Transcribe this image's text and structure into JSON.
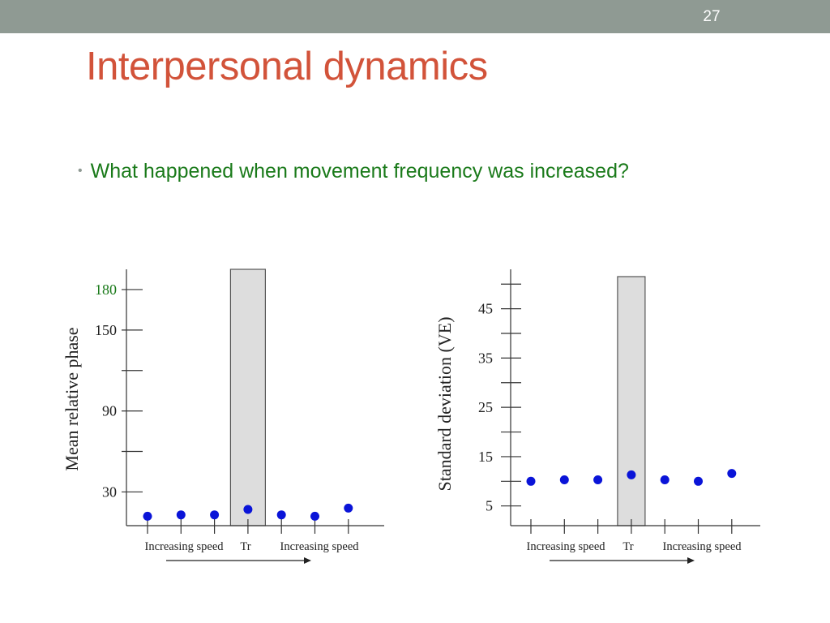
{
  "slide": {
    "number": "27",
    "title": "Interpersonal dynamics",
    "bullet": "What happened when movement frequency was increased?"
  },
  "colors": {
    "topbar": "#8f9a93",
    "title": "#d2533a",
    "bullet_text": "#1a7a1a",
    "marker": "#0a14d8",
    "transition_bar": "#dddddd",
    "highlight_tick": "#1a7a1a"
  },
  "chart_data": [
    {
      "type": "scatter",
      "ylabel": "Mean relative phase",
      "ylim": [
        5,
        195
      ],
      "y_ticks": [
        180,
        150,
        90,
        30
      ],
      "y_ticks_unlabeled": [
        120,
        60
      ],
      "highlight_tick": 180,
      "x": [
        1,
        2,
        3,
        4,
        5,
        6,
        7
      ],
      "values": [
        12,
        13,
        13,
        17,
        13,
        12,
        18
      ],
      "transition_bar_at": 4,
      "x_group_labels": [
        "Increasing speed",
        "Tr",
        "Increasing speed"
      ]
    },
    {
      "type": "scatter",
      "ylabel": "Standard deviation (VE)",
      "ylim": [
        1,
        53
      ],
      "y_ticks": [
        45,
        35,
        25,
        15,
        5
      ],
      "y_ticks_unlabeled": [
        50,
        40,
        30,
        20,
        10
      ],
      "x": [
        1,
        2,
        3,
        4,
        5,
        6,
        7
      ],
      "values": [
        10,
        10.3,
        10.3,
        11.3,
        10.3,
        10,
        11.6
      ],
      "transition_bar_at": 4,
      "x_group_labels": [
        "Increasing speed",
        "Tr",
        "Increasing speed"
      ]
    }
  ]
}
